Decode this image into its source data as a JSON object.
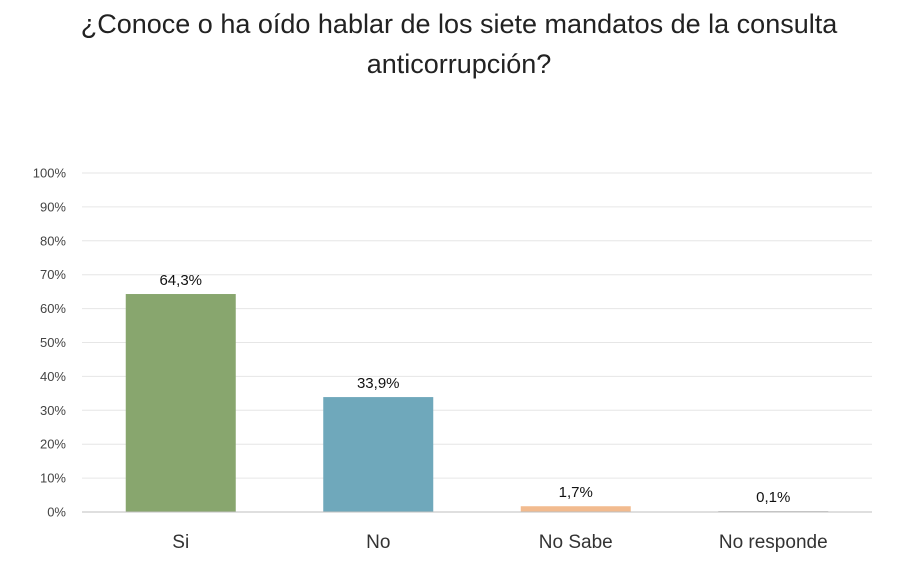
{
  "chart_data": {
    "type": "bar",
    "title": "¿Conoce o ha oído hablar de los siete mandatos de la consulta anticorrupción?",
    "categories": [
      "Si",
      "No",
      "No Sabe",
      "No responde"
    ],
    "values": [
      64.3,
      33.9,
      1.7,
      0.1
    ],
    "data_labels": [
      "64,3%",
      "33,9%",
      "1,7%",
      "0,1%"
    ],
    "colors": [
      "#88a66e",
      "#6fa8bb",
      "#f2bb8f",
      "#c9c9c9"
    ],
    "ylim": [
      0,
      100
    ],
    "yticks": [
      0,
      10,
      20,
      30,
      40,
      50,
      60,
      70,
      80,
      90,
      100
    ],
    "ytick_labels": [
      "0%",
      "10%",
      "20%",
      "30%",
      "40%",
      "50%",
      "60%",
      "70%",
      "80%",
      "90%",
      "100%"
    ],
    "xlabel": "",
    "ylabel": "",
    "grid": true,
    "legend": "none"
  }
}
